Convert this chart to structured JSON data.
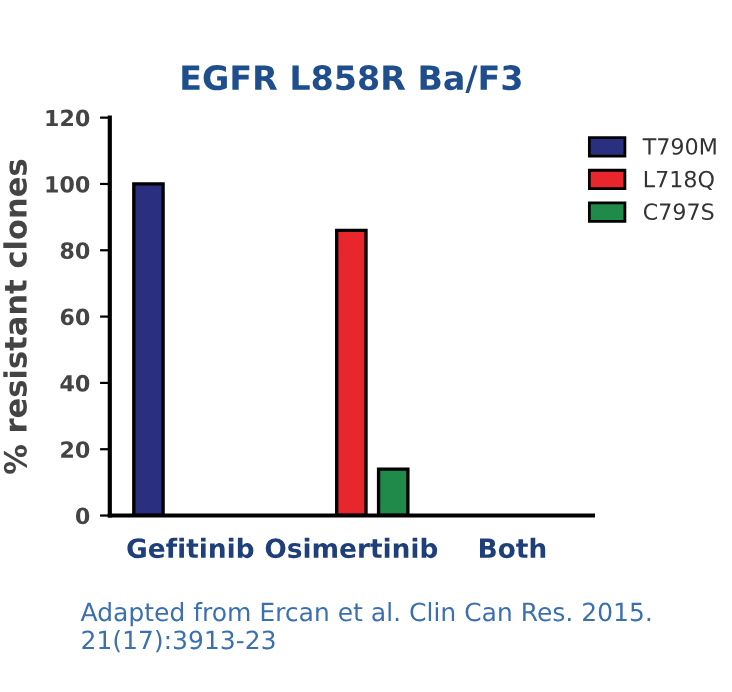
{
  "chart_data": {
    "type": "bar",
    "title": "EGFR L858R Ba/F3",
    "ylabel": "% resistant clones",
    "categories": [
      "Gefitinib",
      "Osimertinib",
      "Both"
    ],
    "series": [
      {
        "name": "T790M",
        "color": "#2b2f7f",
        "values": [
          100,
          null,
          null
        ]
      },
      {
        "name": "L718Q",
        "color": "#e8262b",
        "values": [
          null,
          86,
          null
        ]
      },
      {
        "name": "C797S",
        "color": "#1f8a4a",
        "values": [
          null,
          14,
          null
        ]
      }
    ],
    "ylim": [
      0,
      120
    ],
    "yticks": [
      0,
      20,
      40,
      60,
      80,
      100,
      120
    ],
    "grid": false,
    "legend": "top right",
    "annotations": [
      "Adapted from Ercan et al. Clin Can Res. 2015. 21(17):3913-23"
    ]
  }
}
